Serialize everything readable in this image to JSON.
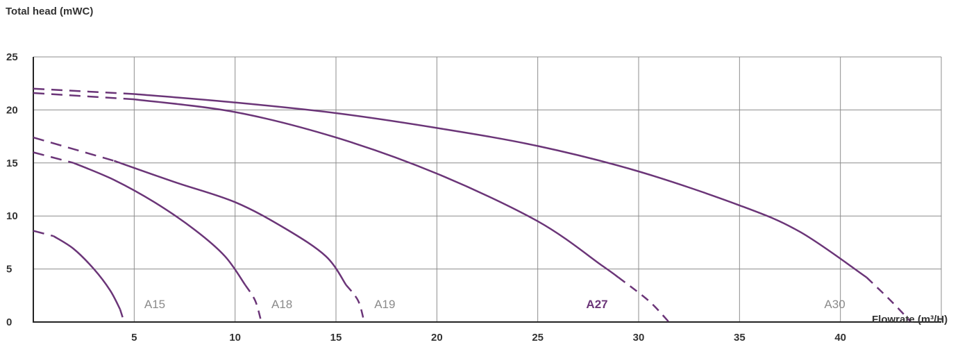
{
  "chart_data": {
    "type": "line",
    "ylabel": "Total head (mWC)",
    "xlabel": "Flowrate (m³/H)",
    "xlim": [
      0,
      45
    ],
    "ylim": [
      0,
      25
    ],
    "x_ticks": [
      "5",
      "10",
      "15",
      "20",
      "25",
      "30",
      "35",
      "40"
    ],
    "y_ticks": [
      "0",
      "5",
      "10",
      "15",
      "20",
      "25"
    ],
    "grid": true,
    "series_color": "#6b3578",
    "series": [
      {
        "name": "A15",
        "label_bold": false,
        "label_at": [
          5.5,
          1.3
        ],
        "dashed_start": [
          [
            0,
            8.6
          ],
          [
            1,
            8.1
          ]
        ],
        "solid": [
          [
            1,
            8.1
          ],
          [
            2,
            6.9
          ],
          [
            3,
            5.0
          ],
          [
            3.8,
            3.0
          ],
          [
            4.3,
            1.2
          ]
        ],
        "dashed_end": [
          [
            4.3,
            1.2
          ],
          [
            4.5,
            0
          ]
        ]
      },
      {
        "name": "A18",
        "label_bold": false,
        "label_at": [
          11.8,
          1.3
        ],
        "dashed_start": [
          [
            0,
            16.0
          ],
          [
            2,
            15.0
          ]
        ],
        "solid": [
          [
            2,
            15.0
          ],
          [
            4,
            13.4
          ],
          [
            6,
            11.3
          ],
          [
            8,
            8.7
          ],
          [
            9.5,
            6.2
          ],
          [
            10.5,
            3.5
          ]
        ],
        "dashed_end": [
          [
            10.5,
            3.5
          ],
          [
            11.0,
            2.0
          ],
          [
            11.3,
            0
          ]
        ]
      },
      {
        "name": "A19",
        "label_bold": false,
        "label_at": [
          16.9,
          1.3
        ],
        "dashed_start": [
          [
            0,
            17.4
          ],
          [
            4,
            15.2
          ]
        ],
        "solid": [
          [
            4,
            15.2
          ],
          [
            7,
            13.2
          ],
          [
            10,
            11.3
          ],
          [
            12.5,
            8.8
          ],
          [
            14.5,
            6.2
          ],
          [
            15.5,
            3.5
          ]
        ],
        "dashed_end": [
          [
            15.5,
            3.5
          ],
          [
            16.1,
            2.0
          ],
          [
            16.4,
            0
          ]
        ]
      },
      {
        "name": "A27",
        "label_bold": true,
        "label_at": [
          27.4,
          1.3
        ],
        "dashed_start": [
          [
            0,
            21.6
          ],
          [
            5,
            21.0
          ]
        ],
        "solid": [
          [
            5,
            21.0
          ],
          [
            10,
            19.8
          ],
          [
            15,
            17.4
          ],
          [
            20,
            14.0
          ],
          [
            25,
            9.5
          ],
          [
            28.2,
            5.3
          ],
          [
            29.0,
            4.2
          ]
        ],
        "dashed_end": [
          [
            29.0,
            4.2
          ],
          [
            30.5,
            2.0
          ],
          [
            31.5,
            0
          ]
        ]
      },
      {
        "name": "A30",
        "label_bold": false,
        "label_at": [
          39.2,
          1.3
        ],
        "dashed_start": [
          [
            0,
            22.0
          ],
          [
            5,
            21.5
          ]
        ],
        "solid": [
          [
            5,
            21.5
          ],
          [
            10,
            20.7
          ],
          [
            15,
            19.7
          ],
          [
            20,
            18.3
          ],
          [
            25,
            16.6
          ],
          [
            30,
            14.2
          ],
          [
            35,
            11.0
          ],
          [
            38,
            8.5
          ],
          [
            41.3,
            4.2
          ]
        ],
        "dashed_end": [
          [
            41.3,
            4.2
          ],
          [
            42.5,
            2.0
          ],
          [
            43.5,
            0
          ]
        ]
      }
    ]
  }
}
